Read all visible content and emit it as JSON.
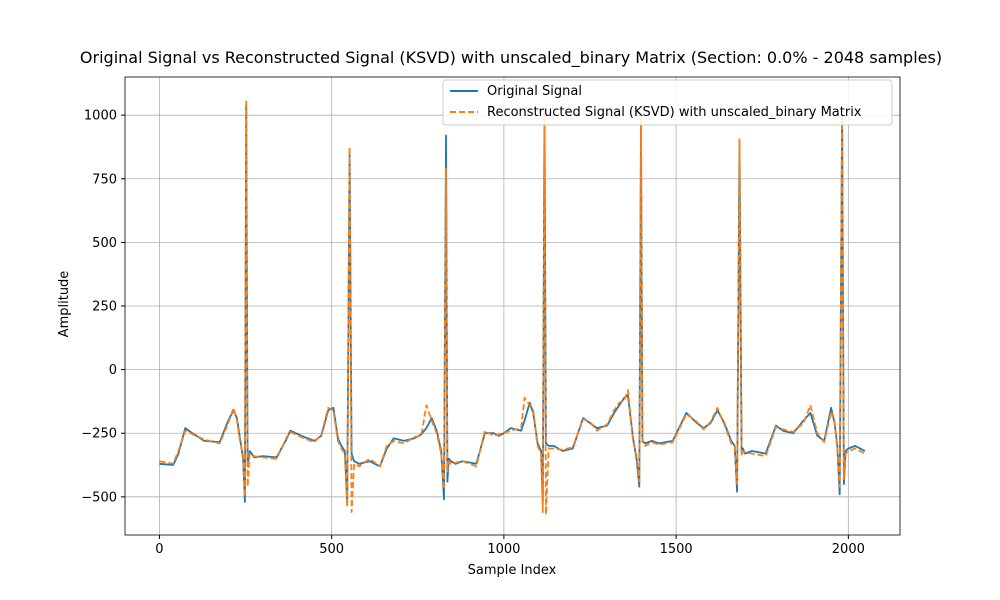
{
  "chart_data": {
    "type": "line",
    "title": "Original Signal vs Reconstructed Signal (KSVD) with unscaled_binary Matrix (Section: 0.0% - 2048 samples)",
    "xlabel": "Sample Index",
    "ylabel": "Amplitude",
    "xlim": [
      -100,
      2150
    ],
    "ylim": [
      -650,
      1150
    ],
    "xticks": [
      0,
      500,
      1000,
      1500,
      2000
    ],
    "yticks": [
      -500,
      -250,
      0,
      250,
      500,
      750,
      1000
    ],
    "grid": true,
    "legend_position": "top-right",
    "series": [
      {
        "name": "Original Signal",
        "color": "#1f77b4",
        "style": "solid",
        "x": [
          0,
          40,
          55,
          75,
          90,
          130,
          175,
          200,
          215,
          225,
          235,
          243,
          248,
          252,
          256,
          262,
          275,
          300,
          340,
          370,
          380,
          420,
          450,
          470,
          490,
          505,
          518,
          528,
          538,
          545,
          552,
          558,
          565,
          580,
          610,
          640,
          660,
          680,
          710,
          740,
          760,
          775,
          790,
          805,
          818,
          826,
          832,
          836,
          840,
          846,
          860,
          880,
          920,
          945,
          970,
          985,
          1000,
          1020,
          1050,
          1060,
          1075,
          1085,
          1098,
          1108,
          1113,
          1118,
          1122,
          1130,
          1145,
          1170,
          1200,
          1230,
          1250,
          1270,
          1300,
          1320,
          1335,
          1350,
          1360,
          1375,
          1385,
          1393,
          1398,
          1402,
          1410,
          1430,
          1450,
          1490,
          1530,
          1560,
          1580,
          1600,
          1620,
          1640,
          1660,
          1670,
          1677,
          1684,
          1690,
          1694,
          1700,
          1720,
          1760,
          1790,
          1810,
          1840,
          1870,
          1890,
          1910,
          1930,
          1950,
          1960,
          1968,
          1975,
          1982,
          1987,
          1992,
          2000,
          2020,
          2048
        ],
        "y": [
          -370,
          -375,
          -330,
          -230,
          -245,
          -280,
          -285,
          -200,
          -160,
          -190,
          -280,
          -350,
          -520,
          1040,
          -380,
          -320,
          -345,
          -340,
          -345,
          -270,
          -240,
          -265,
          -280,
          -260,
          -160,
          -150,
          -270,
          -300,
          -320,
          -520,
          860,
          -330,
          -360,
          -370,
          -360,
          -380,
          -310,
          -270,
          -280,
          -270,
          -255,
          -230,
          -190,
          -240,
          -320,
          -510,
          920,
          -440,
          -350,
          -360,
          -370,
          -360,
          -370,
          -250,
          -250,
          -260,
          -250,
          -230,
          -240,
          -200,
          -130,
          -170,
          -290,
          -320,
          -520,
          1020,
          -290,
          -300,
          -300,
          -320,
          -310,
          -190,
          -210,
          -230,
          -220,
          -170,
          -140,
          -110,
          -100,
          -270,
          -350,
          -460,
          960,
          -280,
          -290,
          -280,
          -290,
          -280,
          -170,
          -210,
          -230,
          -210,
          -160,
          -210,
          -280,
          -300,
          -480,
          890,
          -320,
          -310,
          -330,
          -320,
          -330,
          -220,
          -240,
          -250,
          -200,
          -170,
          -260,
          -280,
          -150,
          -210,
          -300,
          -490,
          1000,
          -450,
          -320,
          -310,
          -300,
          -320
        ]
      },
      {
        "name": "Reconstructed Signal (KSVD) with unscaled_binary Matrix",
        "color": "#ff7f0e",
        "style": "dashed",
        "x": [
          0,
          40,
          55,
          75,
          90,
          130,
          175,
          200,
          215,
          225,
          235,
          243,
          248,
          252,
          256,
          262,
          275,
          300,
          340,
          370,
          380,
          420,
          450,
          470,
          490,
          505,
          518,
          528,
          538,
          545,
          552,
          558,
          565,
          580,
          610,
          640,
          660,
          680,
          710,
          740,
          760,
          775,
          790,
          805,
          818,
          826,
          832,
          836,
          840,
          846,
          860,
          880,
          920,
          945,
          970,
          985,
          1000,
          1020,
          1050,
          1060,
          1075,
          1085,
          1098,
          1108,
          1113,
          1118,
          1122,
          1130,
          1145,
          1170,
          1200,
          1230,
          1250,
          1270,
          1300,
          1320,
          1335,
          1350,
          1360,
          1375,
          1385,
          1393,
          1398,
          1402,
          1410,
          1430,
          1450,
          1490,
          1530,
          1560,
          1580,
          1600,
          1620,
          1640,
          1660,
          1670,
          1677,
          1684,
          1690,
          1694,
          1700,
          1720,
          1760,
          1790,
          1810,
          1840,
          1870,
          1890,
          1910,
          1930,
          1950,
          1960,
          1968,
          1975,
          1982,
          1987,
          1992,
          2000,
          2020,
          2048
        ],
        "y": [
          -360,
          -370,
          -320,
          -240,
          -250,
          -275,
          -290,
          -210,
          -150,
          -200,
          -290,
          -340,
          -500,
          1060,
          -460,
          -330,
          -340,
          -345,
          -350,
          -265,
          -245,
          -270,
          -285,
          -255,
          -150,
          -160,
          -280,
          -310,
          -330,
          -540,
          875,
          -560,
          -370,
          -380,
          -350,
          -380,
          -300,
          -280,
          -290,
          -265,
          -260,
          -140,
          -200,
          -250,
          -330,
          -470,
          790,
          -400,
          -360,
          -370,
          -365,
          -360,
          -380,
          -240,
          -260,
          -255,
          -250,
          -240,
          -230,
          -110,
          -140,
          -160,
          -300,
          -330,
          -560,
          1030,
          -570,
          -310,
          -310,
          -315,
          -305,
          -195,
          -205,
          -240,
          -215,
          -160,
          -130,
          -120,
          -80,
          -280,
          -340,
          -440,
          985,
          -290,
          -300,
          -285,
          -295,
          -285,
          -175,
          -205,
          -235,
          -205,
          -150,
          -215,
          -290,
          -305,
          -450,
          905,
          -340,
          -320,
          -325,
          -330,
          -340,
          -225,
          -235,
          -245,
          -210,
          -140,
          -250,
          -285,
          -165,
          -205,
          -310,
          -460,
          990,
          -430,
          -330,
          -320,
          -310,
          -330
        ]
      }
    ]
  }
}
